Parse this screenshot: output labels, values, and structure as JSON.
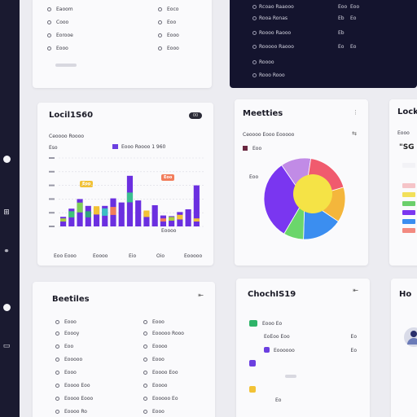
{
  "sidebar": {
    "icons": [
      "circle-icon",
      "grid-icon",
      "link-icon",
      "circle-icon",
      "document-icon"
    ]
  },
  "top_left_card": {
    "items": [
      "Eaoom",
      "Cooo",
      "Eorooe",
      "Eooo"
    ],
    "right_items": [
      "Eoco",
      "Eoo",
      "Eooo",
      "Eooo",
      "Eooo"
    ]
  },
  "dark_panel": {
    "rows": [
      {
        "label": "Rcoao Raaooo",
        "v1": "Eoo",
        "v2": "Eoo"
      },
      {
        "label": "Rooa Ronas",
        "v1": "Eb",
        "v2": "Eo"
      },
      {
        "label": "Roooo Raooo",
        "v1": "Eb",
        "v2": ""
      },
      {
        "label": "Rooooo Raooo",
        "v1": "Eo",
        "v2": "Eo"
      },
      {
        "label": "Roooo",
        "v1": "",
        "v2": ""
      },
      {
        "label": "Rooo Rooo",
        "v1": "",
        "v2": ""
      }
    ]
  },
  "chart_card": {
    "title": "Locil1S60",
    "badge": "00",
    "subtitle": "Ceoooo Roooo",
    "y_label": "Eso",
    "legend_label": "Eooo Roooo 1 960",
    "x_categories": [
      "Eoo Eooo",
      "Eoooo",
      "Eio",
      "Oio",
      "Eooooo"
    ],
    "x_unit": "Eoooo",
    "tooltip_a": "Eoo",
    "tooltip_b": "Eoo"
  },
  "chart_data": {
    "type": "bar",
    "ylim": [
      0,
      10
    ],
    "values": [
      1.4,
      2.6,
      4.0,
      3.0,
      2.7,
      3.0,
      4.1,
      3.5,
      7.4,
      3.8,
      2.1,
      3.1,
      1.6,
      1.5,
      2.1,
      2.5,
      6.0
    ],
    "overlay": [
      {
        "i": 0,
        "h": 1.0,
        "color": "#a9ce3f"
      },
      {
        "i": 1,
        "h": 2.0,
        "color": "#3ec47a"
      },
      {
        "i": 2,
        "h": 3.2,
        "color": "#7ecf57"
      },
      {
        "i": 3,
        "h": 2.0,
        "color": "#2ea57e"
      },
      {
        "i": 4,
        "h": 2.8,
        "color": "#f2c236"
      },
      {
        "i": 5,
        "h": 2.4,
        "color": "#3bbfc4"
      },
      {
        "i": 6,
        "h": 2.6,
        "color": "#f27d5b"
      },
      {
        "i": 8,
        "h": 4.6,
        "color": "#3bbf8f"
      },
      {
        "i": 10,
        "h": 3.6,
        "color": "#f2c236"
      },
      {
        "i": 12,
        "h": 1.0,
        "color": "#f27d5b"
      },
      {
        "i": 13,
        "h": 1.2,
        "color": "#a9ce3f"
      },
      {
        "i": 14,
        "h": 1.5,
        "color": "#f2c236"
      },
      {
        "i": 16,
        "h": 1.0,
        "color": "#f2c236"
      }
    ]
  },
  "metrics_card": {
    "title": "Meetties",
    "subtitle": "Ceoooo Eooo Eooooo",
    "top_label": "Eoo",
    "side_label": "Eoo",
    "arrow": "⇆"
  },
  "pie": {
    "slices": [
      {
        "value": 12,
        "color": "#c18be6"
      },
      {
        "value": 18,
        "color": "#f05b6e"
      },
      {
        "value": 14,
        "color": "#f4b63c"
      },
      {
        "value": 16,
        "color": "#3b8ef0"
      },
      {
        "value": 8,
        "color": "#6bd66b"
      },
      {
        "value": 32,
        "color": "#7a36f0"
      }
    ],
    "inner_color": "#f5e346"
  },
  "right_card": {
    "title": "Locki",
    "subtitle": "Eooo",
    "value": "\"SG"
  },
  "bottom_left": {
    "title": "Beetiles",
    "arrow": "⇤",
    "left_items": [
      "Eooo",
      "Eoooy",
      "Eoo",
      "Eooooo",
      "Eooo",
      "Eoooo Eoo",
      "Eoooo Eooo",
      "Eoooo Ro"
    ],
    "right_items": [
      "Eooo",
      "Eooooo Rooo",
      "Eoooo",
      "Eooo",
      "Eoooo Eoo",
      "Eoooo",
      "Eooooo Eo",
      "Eooo"
    ]
  },
  "bottom_middle": {
    "title": "ChochIS19",
    "arrow": "⇤",
    "rows": [
      {
        "label": "Eooo Eo",
        "chip": "#2eb368",
        "right": ""
      },
      {
        "label": "EoEoo Eoo",
        "chip": "",
        "right": "Eo"
      },
      {
        "label": "Eoooooo",
        "chip": "#6b3fe0",
        "right": "Eo"
      },
      {
        "label": "",
        "chip": "#6b3fe0",
        "right": ""
      },
      {
        "label": "Eo",
        "chip": "#f2c236",
        "right": ""
      }
    ]
  },
  "bottom_right": {
    "title": "Ho"
  }
}
